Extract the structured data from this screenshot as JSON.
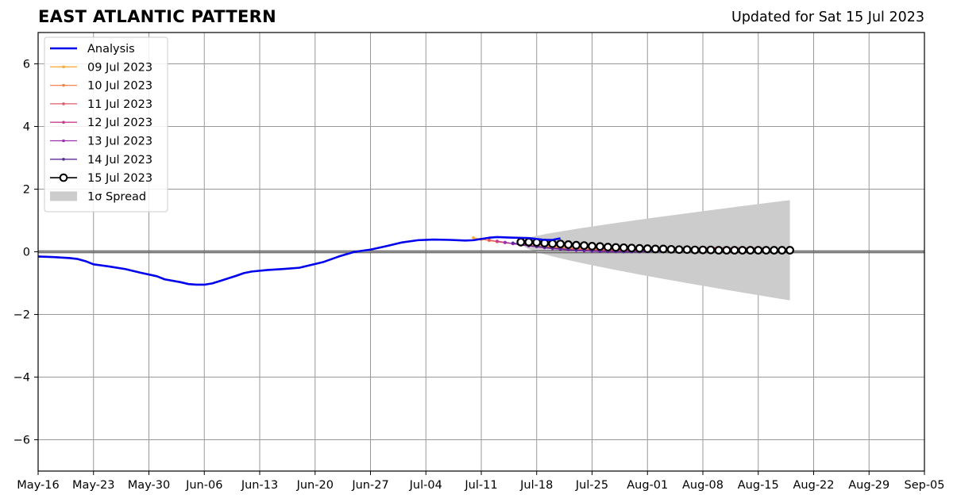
{
  "chart_data": {
    "type": "line",
    "title": "EAST ATLANTIC PATTERN",
    "subtitle": "Updated for Sat 15 Jul 2023",
    "xlabel": "",
    "ylabel": "",
    "xlim": [
      "2023-05-16",
      "2023-09-05"
    ],
    "ylim": [
      -7,
      7
    ],
    "yticks": [
      -6,
      -4,
      -2,
      0,
      2,
      4,
      6
    ],
    "ytick_labels": [
      "−6",
      "−4",
      "−2",
      "0",
      "2",
      "4",
      "6"
    ],
    "xticks": [
      "2023-05-16",
      "2023-05-23",
      "2023-05-30",
      "2023-06-06",
      "2023-06-13",
      "2023-06-20",
      "2023-06-27",
      "2023-07-04",
      "2023-07-11",
      "2023-07-18",
      "2023-07-25",
      "2023-08-01",
      "2023-08-08",
      "2023-08-15",
      "2023-08-22",
      "2023-08-29",
      "2023-09-05"
    ],
    "xtick_labels": [
      "May-16",
      "May-23",
      "May-30",
      "Jun-06",
      "Jun-13",
      "Jun-20",
      "Jun-27",
      "Jul-04",
      "Jul-11",
      "Jul-18",
      "Jul-25",
      "Aug-01",
      "Aug-08",
      "Aug-15",
      "Aug-22",
      "Aug-29",
      "Sep-05"
    ],
    "grid": true,
    "zero_line": true,
    "legend_position": "top-left",
    "legend_labels": {
      "analysis": "Analysis",
      "spread": "1σ Spread"
    },
    "analysis": {
      "name": "Analysis",
      "color": "#0000ee",
      "points": [
        [
          "2023-05-16",
          -0.15
        ],
        [
          "2023-05-18",
          -0.17
        ],
        [
          "2023-05-20",
          -0.2
        ],
        [
          "2023-05-21",
          -0.23
        ],
        [
          "2023-05-22",
          -0.3
        ],
        [
          "2023-05-23",
          -0.4
        ],
        [
          "2023-05-25",
          -0.47
        ],
        [
          "2023-05-27",
          -0.55
        ],
        [
          "2023-05-29",
          -0.67
        ],
        [
          "2023-05-31",
          -0.78
        ],
        [
          "2023-06-01",
          -0.88
        ],
        [
          "2023-06-03",
          -0.97
        ],
        [
          "2023-06-04",
          -1.03
        ],
        [
          "2023-06-05",
          -1.05
        ],
        [
          "2023-06-06",
          -1.05
        ],
        [
          "2023-06-07",
          -1.01
        ],
        [
          "2023-06-08",
          -0.93
        ],
        [
          "2023-06-10",
          -0.77
        ],
        [
          "2023-06-11",
          -0.68
        ],
        [
          "2023-06-12",
          -0.63
        ],
        [
          "2023-06-14",
          -0.58
        ],
        [
          "2023-06-16",
          -0.55
        ],
        [
          "2023-06-18",
          -0.51
        ],
        [
          "2023-06-19",
          -0.45
        ],
        [
          "2023-06-21",
          -0.33
        ],
        [
          "2023-06-23",
          -0.15
        ],
        [
          "2023-06-25",
          0.0
        ],
        [
          "2023-06-27",
          0.07
        ],
        [
          "2023-06-29",
          0.18
        ],
        [
          "2023-07-01",
          0.3
        ],
        [
          "2023-07-03",
          0.37
        ],
        [
          "2023-07-05",
          0.39
        ],
        [
          "2023-07-07",
          0.38
        ],
        [
          "2023-07-09",
          0.36
        ],
        [
          "2023-07-10",
          0.37
        ],
        [
          "2023-07-12",
          0.45
        ],
        [
          "2023-07-13",
          0.47
        ],
        [
          "2023-07-15",
          0.45
        ],
        [
          "2023-07-17",
          0.44
        ],
        [
          "2023-07-19",
          0.38
        ],
        [
          "2023-07-20",
          0.38
        ],
        [
          "2023-07-21",
          0.43
        ]
      ]
    },
    "series": [
      {
        "name": "09 Jul 2023",
        "color": "#fdae3a",
        "start": "2023-07-10",
        "values": [
          0.45,
          0.4,
          0.36,
          0.33,
          0.3,
          0.27,
          0.24,
          0.22,
          0.2,
          0.18,
          0.16,
          0.15,
          0.13,
          0.12,
          0.11,
          0.1,
          0.09,
          0.09,
          0.08,
          0.08,
          0.08,
          0.08,
          0.08,
          0.08,
          0.09,
          0.09,
          0.09,
          0.1,
          0.1,
          0.1,
          0.1,
          0.1,
          0.1,
          0.1,
          0.1,
          0.1
        ]
      },
      {
        "name": "10 Jul 2023",
        "color": "#f4844a",
        "start": "2023-07-11",
        "values": [
          0.4,
          0.36,
          0.32,
          0.29,
          0.26,
          0.23,
          0.21,
          0.18,
          0.16,
          0.14,
          0.12,
          0.11,
          0.1,
          0.09,
          0.08,
          0.07,
          0.07,
          0.07,
          0.07,
          0.07,
          0.08,
          0.08,
          0.09,
          0.09,
          0.1,
          0.1,
          0.1,
          0.11,
          0.11,
          0.11,
          0.11,
          0.11,
          0.11,
          0.11,
          0.11,
          0.11
        ]
      },
      {
        "name": "11 Jul 2023",
        "color": "#e05a6a",
        "start": "2023-07-12",
        "values": [
          0.38,
          0.33,
          0.29,
          0.26,
          0.23,
          0.2,
          0.17,
          0.15,
          0.13,
          0.11,
          0.09,
          0.08,
          0.07,
          0.06,
          0.05,
          0.05,
          0.05,
          0.05,
          0.06,
          0.07,
          0.08,
          0.09,
          0.1,
          0.11,
          0.12,
          0.12,
          0.13,
          0.13,
          0.13,
          0.13,
          0.13,
          0.13,
          0.13,
          0.13,
          0.13,
          0.13
        ]
      },
      {
        "name": "12 Jul 2023",
        "color": "#c73f8e",
        "start": "2023-07-13",
        "values": [
          0.34,
          0.3,
          0.26,
          0.22,
          0.19,
          0.16,
          0.13,
          0.11,
          0.09,
          0.07,
          0.05,
          0.04,
          0.03,
          0.02,
          0.02,
          0.02,
          0.02,
          0.02,
          0.03,
          0.03,
          0.04,
          0.04,
          0.05,
          0.05,
          0.05,
          0.06,
          0.06,
          0.06,
          0.06,
          0.06,
          0.06,
          0.06,
          0.06,
          0.06,
          0.06,
          0.06
        ]
      },
      {
        "name": "13 Jul 2023",
        "color": "#9a2fb0",
        "start": "2023-07-14",
        "values": [
          0.3,
          0.26,
          0.22,
          0.19,
          0.16,
          0.13,
          0.1,
          0.08,
          0.06,
          0.04,
          0.03,
          0.02,
          0.01,
          0.0,
          0.0,
          0.0,
          0.0,
          0.0,
          0.0,
          0.01,
          0.01,
          0.02,
          0.02,
          0.03,
          0.03,
          0.03,
          0.04,
          0.04,
          0.04,
          0.04,
          0.04,
          0.04,
          0.04,
          0.04,
          0.04,
          0.04
        ]
      },
      {
        "name": "14 Jul 2023",
        "color": "#5a2a99",
        "start": "2023-07-15",
        "values": [
          0.28,
          0.24,
          0.2,
          0.17,
          0.14,
          0.11,
          0.09,
          0.07,
          0.05,
          0.04,
          0.03,
          0.02,
          0.01,
          0.01,
          0.0,
          0.0,
          0.0,
          0.01,
          0.01,
          0.01,
          0.02,
          0.02,
          0.03,
          0.03,
          0.03,
          0.04,
          0.04,
          0.04,
          0.04,
          0.04,
          0.04,
          0.04,
          0.04,
          0.04,
          0.04,
          0.04
        ]
      },
      {
        "name": "15 Jul 2023",
        "color": "#000000",
        "start": "2023-07-16",
        "markers": "open-circle",
        "values": [
          0.31,
          0.31,
          0.3,
          0.28,
          0.26,
          0.25,
          0.23,
          0.21,
          0.2,
          0.18,
          0.17,
          0.15,
          0.14,
          0.13,
          0.12,
          0.11,
          0.1,
          0.09,
          0.09,
          0.08,
          0.07,
          0.07,
          0.06,
          0.06,
          0.06,
          0.05,
          0.05,
          0.05,
          0.05,
          0.05,
          0.05,
          0.05,
          0.05,
          0.05,
          0.05
        ]
      }
    ],
    "spread": {
      "name": "1σ Spread",
      "color": "#cccccc",
      "start": "2023-07-16",
      "end": "2023-08-19",
      "upper_end": 1.65,
      "lower_end": -1.55
    }
  }
}
